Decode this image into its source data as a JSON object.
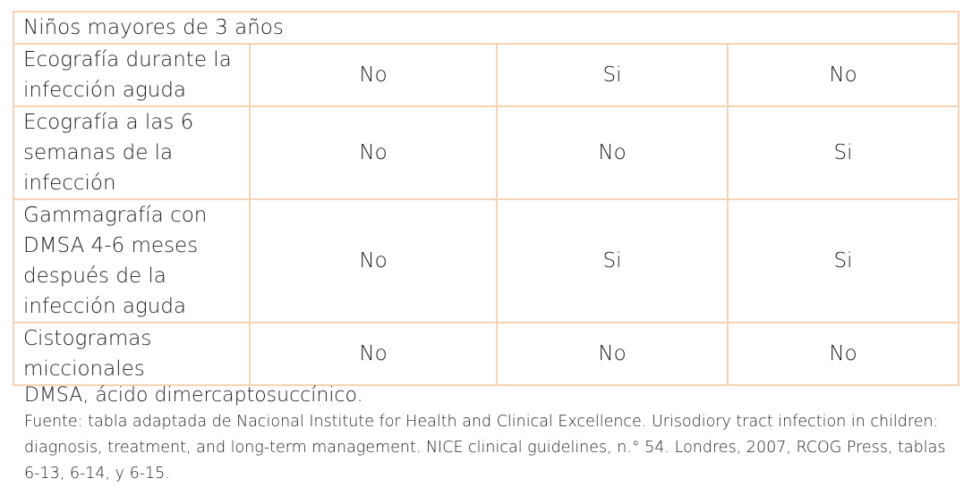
{
  "table": {
    "header": "Niños mayores de 3 años",
    "rows": [
      {
        "label": "Ecografía durante la infección aguda",
        "values": [
          "No",
          "Si",
          "No"
        ]
      },
      {
        "label": "Ecografía a las 6 semanas de la infección",
        "values": [
          "No",
          "No",
          "Si"
        ]
      },
      {
        "label": "Gammagrafía con DMSA 4-6 meses después de la infección aguda",
        "values": [
          "No",
          "Si",
          "Si"
        ]
      },
      {
        "label": "Cistogramas miccionales",
        "values": [
          "No",
          "No",
          "No"
        ]
      }
    ]
  },
  "notes": {
    "abbreviation": "DMSA, ácido dimercaptosuccínico.",
    "source": "Fuente: tabla adaptada de Nacional Institute for Health and Clinical Excellence. Urisodiory tract infection in children: diagnosis, treatment, and long-term management. NICE clinical guidelines, n.° 54. Londres, 2007, RCOG Press, tablas 6-13, 6-14, y 6-15."
  }
}
